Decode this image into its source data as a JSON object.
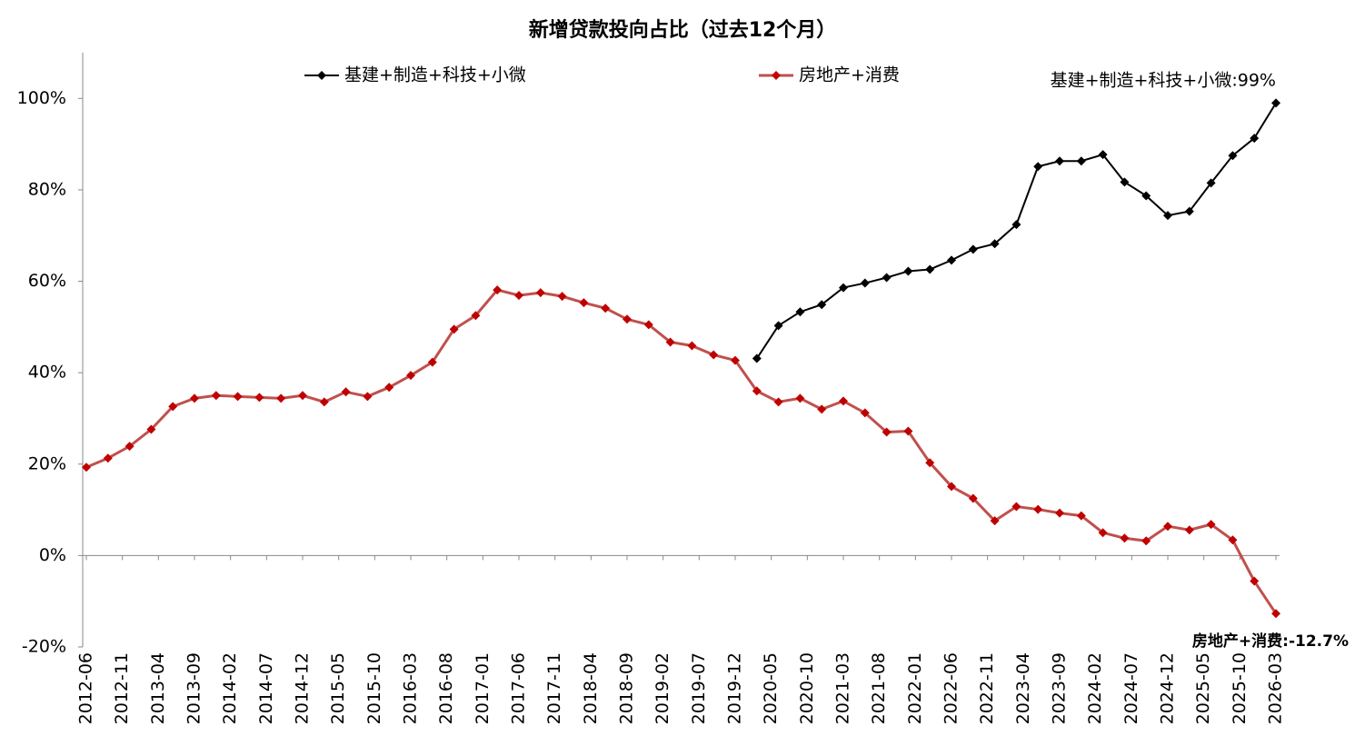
{
  "chart_data": {
    "type": "line",
    "title": "新增贷款投向占比（过去12个月）",
    "x": [
      "2012-06",
      "2012-09",
      "2012-12",
      "2013-03",
      "2013-06",
      "2013-09",
      "2013-12",
      "2014-03",
      "2014-06",
      "2014-09",
      "2014-12",
      "2015-03",
      "2015-06",
      "2015-09",
      "2015-12",
      "2016-03",
      "2016-06",
      "2016-09",
      "2016-12",
      "2017-03",
      "2017-06",
      "2017-09",
      "2017-12",
      "2018-03",
      "2018-06",
      "2018-09",
      "2018-12",
      "2019-03",
      "2019-06",
      "2019-09",
      "2019-12",
      "2020-03",
      "2020-06",
      "2020-09",
      "2020-12",
      "2021-03",
      "2021-06",
      "2021-09",
      "2021-12",
      "2022-03",
      "2022-06",
      "2022-09",
      "2022-12",
      "2023-03",
      "2023-06",
      "2023-09",
      "2023-12",
      "2024-03",
      "2024-06",
      "2024-09",
      "2024-12",
      "2025-03",
      "2025-06",
      "2025-09",
      "2025-12",
      "2026-03"
    ],
    "xticks": [
      "2012-06",
      "2012-11",
      "2013-04",
      "2013-09",
      "2014-02",
      "2014-07",
      "2014-12",
      "2015-05",
      "2015-10",
      "2016-03",
      "2016-08",
      "2017-01",
      "2017-06",
      "2017-11",
      "2018-04",
      "2018-09",
      "2019-02",
      "2019-07",
      "2019-12",
      "2020-05",
      "2020-10",
      "2021-03",
      "2021-08",
      "2022-01",
      "2022-06",
      "2022-11",
      "2023-04",
      "2023-09",
      "2024-02",
      "2024-07",
      "2024-12",
      "2025-05",
      "2025-10",
      "2026-03"
    ],
    "series": [
      {
        "name": "基建+制造+科技+小微",
        "color": "#000000",
        "values": [
          null,
          null,
          null,
          null,
          null,
          null,
          null,
          null,
          null,
          null,
          null,
          null,
          null,
          null,
          null,
          null,
          null,
          null,
          null,
          null,
          null,
          null,
          null,
          null,
          null,
          null,
          null,
          null,
          null,
          null,
          null,
          43.1,
          50.3,
          53.3,
          54.9,
          58.6,
          59.6,
          60.8,
          62.2,
          62.6,
          64.6,
          67,
          68.2,
          72.4,
          85.1,
          86.3,
          86.3,
          87.7,
          81.7,
          78.7,
          74.4,
          75.3,
          81.5,
          87.5,
          91.3,
          99
        ]
      },
      {
        "name": "房地产+消费",
        "color": "#c0504d",
        "values": [
          19.3,
          21.3,
          23.9,
          27.6,
          32.6,
          34.4,
          35,
          34.8,
          34.6,
          34.4,
          35,
          33.6,
          35.8,
          34.8,
          36.8,
          39.4,
          42.3,
          49.5,
          52.5,
          58.1,
          56.9,
          57.5,
          56.7,
          55.3,
          54.1,
          51.7,
          50.5,
          46.7,
          45.9,
          43.9,
          42.7,
          36,
          33.6,
          34.4,
          32,
          33.8,
          31.2,
          27,
          27.2,
          20.3,
          15.1,
          12.5,
          7.6,
          10.7,
          10.1,
          9.3,
          8.7,
          5,
          3.8,
          3.2,
          6.4,
          5.6,
          6.8,
          3.4,
          -5.6,
          -12.7
        ]
      }
    ],
    "annotations": [
      {
        "text": "基建+制造+科技+小微:99%",
        "color": "#000000"
      },
      {
        "text": "房地产+消费:-12.7%",
        "color": "#c00000"
      }
    ],
    "ylim": [
      -20,
      110
    ],
    "yticks": [
      {
        "value": -20,
        "label": "-20%"
      },
      {
        "value": 0,
        "label": "0%"
      },
      {
        "value": 20,
        "label": "20%"
      },
      {
        "value": 40,
        "label": "40%"
      },
      {
        "value": 60,
        "label": "60%"
      },
      {
        "value": 80,
        "label": "80%"
      },
      {
        "value": 100,
        "label": "100%"
      }
    ]
  }
}
